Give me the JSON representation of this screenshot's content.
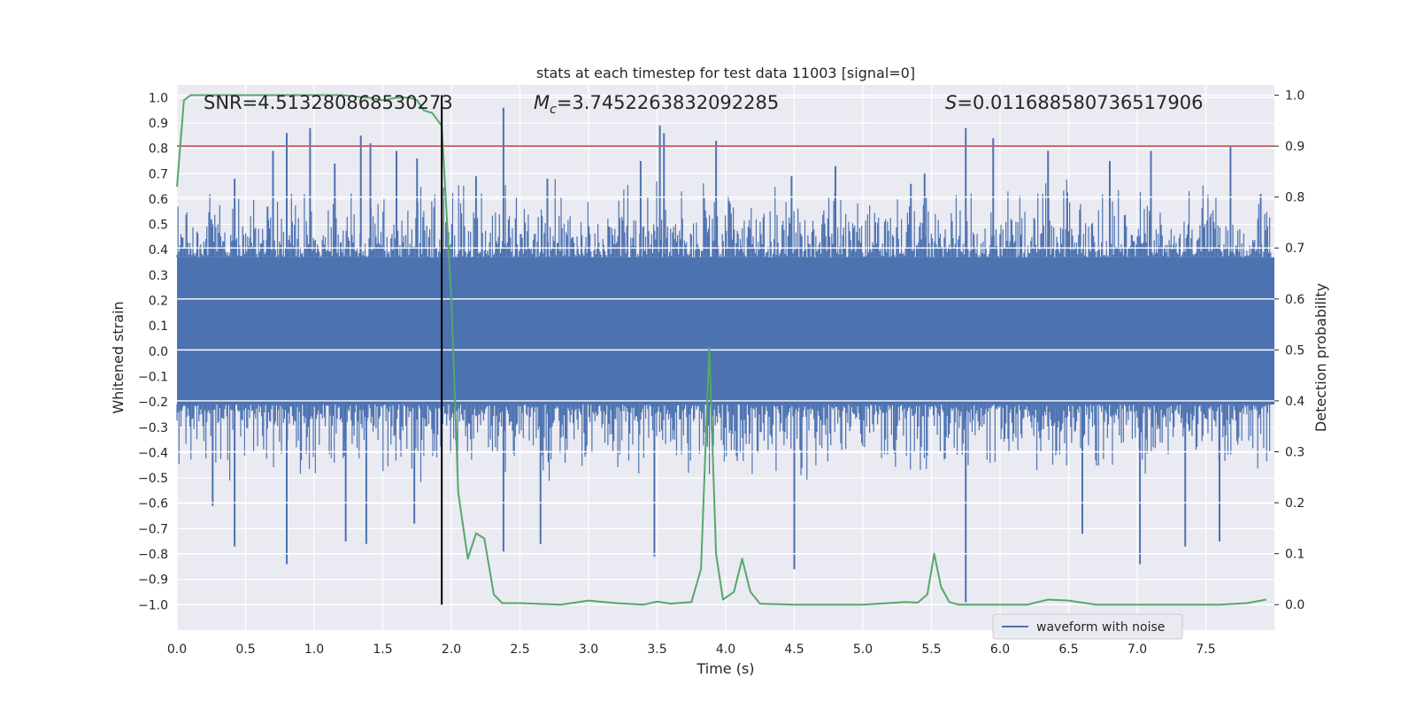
{
  "chart_data": {
    "type": "line",
    "title": "stats at each timestep for test data 11003 [signal=0]",
    "xlabel": "Time (s)",
    "ylabel_left": "Whitened strain",
    "ylabel_right": "Detection probability",
    "xlim": [
      0.0,
      8.0
    ],
    "ylim_left": [
      -1.1,
      1.05
    ],
    "ylim_right": [
      -0.05,
      1.02
    ],
    "x_ticks": [
      "0.0",
      "0.5",
      "1.0",
      "1.5",
      "2.0",
      "2.5",
      "3.0",
      "3.5",
      "4.0",
      "4.5",
      "5.0",
      "5.5",
      "6.0",
      "6.5",
      "7.0",
      "7.5"
    ],
    "y_left_ticks": [
      "1.0",
      "0.9",
      "0.8",
      "0.7",
      "0.6",
      "0.5",
      "0.4",
      "0.3",
      "0.2",
      "0.1",
      "0.0",
      "-0.1",
      "-0.2",
      "-0.3",
      "-0.4",
      "-0.5",
      "-0.6",
      "-0.7",
      "-0.8",
      "-0.9",
      "-1.0"
    ],
    "y_right_ticks": [
      "1.0",
      "0.9",
      "0.8",
      "0.7",
      "0.6",
      "0.5",
      "0.4",
      "0.3",
      "0.2",
      "0.1",
      "0.0"
    ],
    "grid": true,
    "annotations": {
      "snr": "SNR=4.513280868530273",
      "mc_symbol": "M",
      "mc_sub": "c",
      "mc_value": "=3.7452263832092285",
      "s_symbol": "S",
      "s_value": "=0.011688580736517906"
    },
    "threshold_right": 0.9,
    "marker_time": 1.93,
    "legend": {
      "label": "waveform with noise",
      "position": "lower-right"
    },
    "waveform": {
      "name": "waveform with noise",
      "color": "#4c72b0",
      "band_upper": 0.37,
      "band_lower": -0.21,
      "spikes": [
        {
          "t": 0.25,
          "v": 0.52
        },
        {
          "t": 0.42,
          "v": 0.68
        },
        {
          "t": 0.66,
          "v": 0.57
        },
        {
          "t": 0.7,
          "v": 0.79
        },
        {
          "t": 0.8,
          "v": 0.86
        },
        {
          "t": 0.97,
          "v": 0.88
        },
        {
          "t": 1.15,
          "v": 0.74
        },
        {
          "t": 1.34,
          "v": 0.85
        },
        {
          "t": 1.41,
          "v": 0.82
        },
        {
          "t": 1.6,
          "v": 0.79
        },
        {
          "t": 1.75,
          "v": 0.76
        },
        {
          "t": 2.18,
          "v": 0.69
        },
        {
          "t": 2.38,
          "v": 0.96
        },
        {
          "t": 2.7,
          "v": 0.68
        },
        {
          "t": 3.38,
          "v": 0.75
        },
        {
          "t": 3.52,
          "v": 0.89
        },
        {
          "t": 3.55,
          "v": 0.86
        },
        {
          "t": 3.93,
          "v": 0.83
        },
        {
          "t": 4.48,
          "v": 0.69
        },
        {
          "t": 4.8,
          "v": 0.73
        },
        {
          "t": 5.35,
          "v": 0.66
        },
        {
          "t": 5.45,
          "v": 0.7
        },
        {
          "t": 5.75,
          "v": 0.88
        },
        {
          "t": 5.95,
          "v": 0.84
        },
        {
          "t": 6.35,
          "v": 0.79
        },
        {
          "t": 6.8,
          "v": 0.75
        },
        {
          "t": 7.1,
          "v": 0.79
        },
        {
          "t": 7.68,
          "v": 0.81
        },
        {
          "t": 7.9,
          "v": 0.62
        },
        {
          "t": 0.26,
          "v": -0.61
        },
        {
          "t": 0.42,
          "v": -0.77
        },
        {
          "t": 0.8,
          "v": -0.84
        },
        {
          "t": 1.23,
          "v": -0.75
        },
        {
          "t": 1.38,
          "v": -0.76
        },
        {
          "t": 1.73,
          "v": -0.68
        },
        {
          "t": 2.38,
          "v": -0.79
        },
        {
          "t": 2.65,
          "v": -0.76
        },
        {
          "t": 3.48,
          "v": -0.81
        },
        {
          "t": 4.5,
          "v": -0.86
        },
        {
          "t": 5.75,
          "v": -0.99
        },
        {
          "t": 6.6,
          "v": -0.72
        },
        {
          "t": 7.02,
          "v": -0.84
        },
        {
          "t": 7.35,
          "v": -0.77
        },
        {
          "t": 7.6,
          "v": -0.75
        }
      ]
    },
    "detection_probability": {
      "color": "#55a868",
      "t": [
        0.0,
        0.05,
        0.1,
        0.2,
        0.5,
        0.8,
        1.0,
        1.2,
        1.4,
        1.5,
        1.6,
        1.7,
        1.75,
        1.8,
        1.86,
        1.93,
        2.0,
        2.05,
        2.12,
        2.18,
        2.24,
        2.31,
        2.37,
        2.5,
        2.8,
        3.0,
        3.2,
        3.4,
        3.5,
        3.6,
        3.75,
        3.82,
        3.88,
        3.93,
        3.98,
        4.06,
        4.12,
        4.18,
        4.25,
        4.5,
        5.0,
        5.3,
        5.4,
        5.47,
        5.52,
        5.57,
        5.63,
        5.7,
        5.8,
        6.0,
        6.2,
        6.35,
        6.5,
        6.7,
        6.9,
        7.1,
        7.4,
        7.6,
        7.8,
        7.94
      ],
      "p": [
        0.82,
        0.99,
        1.0,
        1.0,
        1.0,
        1.0,
        1.0,
        1.0,
        0.995,
        0.99,
        0.995,
        0.995,
        0.99,
        0.97,
        0.965,
        0.94,
        0.6,
        0.22,
        0.09,
        0.14,
        0.13,
        0.02,
        0.003,
        0.003,
        0.0,
        0.008,
        0.003,
        0.0,
        0.006,
        0.002,
        0.005,
        0.07,
        0.505,
        0.1,
        0.01,
        0.025,
        0.09,
        0.025,
        0.002,
        0.0,
        0.0,
        0.005,
        0.004,
        0.02,
        0.1,
        0.035,
        0.005,
        0.0,
        0.0,
        0.0,
        0.0,
        0.01,
        0.008,
        0.0,
        0.0,
        0.0,
        0.0,
        0.0,
        0.003,
        0.01
      ]
    }
  }
}
